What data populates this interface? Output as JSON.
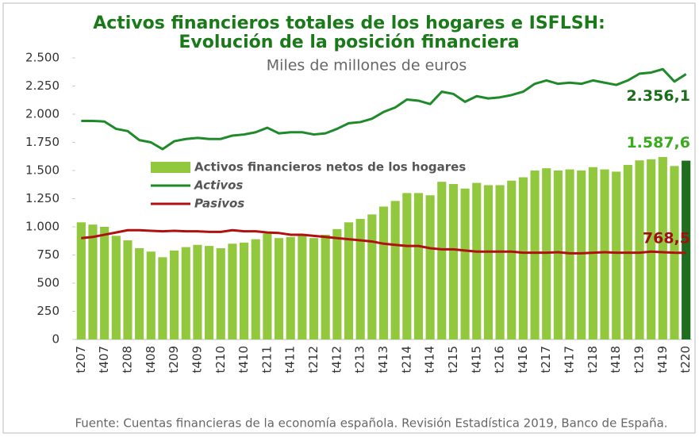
{
  "chart_data": {
    "type": "bar_line",
    "title": [
      "Activos financieros totales de los hogares e ISFLSH:",
      "Evolución de la posición financiera"
    ],
    "subtitle": "Miles de millones de euros",
    "source": "Fuente: Cuentas financieras de la economía española. Revisión Estadística 2019, Banco de España.",
    "categories": [
      "t207",
      null,
      "t407",
      null,
      "t208",
      null,
      "t408",
      null,
      "t209",
      null,
      "t409",
      null,
      "t210",
      null,
      "t410",
      null,
      "t211",
      null,
      "t411",
      null,
      "t212",
      null,
      "t412",
      null,
      "t213",
      null,
      "t413",
      null,
      "t214",
      null,
      "t414",
      null,
      "t215",
      null,
      "t415",
      null,
      "t216",
      null,
      "t416",
      null,
      "t217",
      null,
      "t417",
      null,
      "t218",
      null,
      "t418",
      null,
      "t219",
      null,
      "t419",
      null,
      "t220"
    ],
    "series": [
      {
        "name": "Activos financieros netos de los hogares",
        "kind": "bar",
        "color": "#92c83e",
        "last_color": "#1f6e1f",
        "values": [
          1040,
          1020,
          1000,
          920,
          880,
          810,
          780,
          730,
          790,
          820,
          840,
          830,
          810,
          850,
          860,
          890,
          940,
          900,
          910,
          920,
          900,
          930,
          980,
          1040,
          1070,
          1110,
          1180,
          1230,
          1300,
          1300,
          1280,
          1400,
          1380,
          1340,
          1390,
          1370,
          1370,
          1410,
          1440,
          1500,
          1520,
          1500,
          1510,
          1500,
          1530,
          1510,
          1490,
          1550,
          1590,
          1600,
          1620,
          1540,
          1587.6
        ],
        "value_labels": {
          "52": "1.587,6"
        },
        "label_color": "#3aaa1e"
      },
      {
        "name": "Activos",
        "kind": "line",
        "color": "#1e8a2a",
        "values": [
          1940,
          1940,
          1935,
          1870,
          1850,
          1770,
          1750,
          1690,
          1760,
          1780,
          1790,
          1780,
          1780,
          1810,
          1820,
          1840,
          1880,
          1830,
          1840,
          1840,
          1820,
          1830,
          1870,
          1920,
          1930,
          1960,
          2020,
          2060,
          2130,
          2120,
          2090,
          2200,
          2180,
          2110,
          2160,
          2140,
          2150,
          2170,
          2200,
          2270,
          2300,
          2270,
          2280,
          2270,
          2300,
          2280,
          2260,
          2300,
          2360,
          2370,
          2400,
          2290,
          2356.1
        ],
        "value_labels": {
          "52": "2.356,1"
        },
        "label_color": "#1a6e1a"
      },
      {
        "name": "Pasivos",
        "kind": "line",
        "color": "#b01010",
        "values": [
          900,
          910,
          930,
          950,
          970,
          970,
          965,
          960,
          965,
          960,
          960,
          955,
          955,
          970,
          960,
          960,
          950,
          945,
          930,
          930,
          920,
          910,
          900,
          890,
          880,
          870,
          850,
          840,
          830,
          830,
          810,
          800,
          800,
          790,
          780,
          780,
          780,
          780,
          770,
          770,
          770,
          775,
          765,
          765,
          770,
          775,
          770,
          770,
          770,
          780,
          775,
          770,
          768.5
        ],
        "value_labels": {
          "52": "768,5"
        },
        "label_color": "#a01010"
      }
    ],
    "ylim": [
      0,
      2500
    ],
    "yticks": [
      0,
      250,
      500,
      750,
      {
        "value": 1000,
        "label": "1.000"
      },
      {
        "value": 1250,
        "label": "1.250"
      },
      {
        "value": 1500,
        "label": "1.500"
      },
      {
        "value": 1750,
        "label": "1.750"
      },
      {
        "value": 2000,
        "label": "2.000"
      },
      {
        "value": 2250,
        "label": "2.250"
      },
      {
        "value": 2500,
        "label": "2.500"
      }
    ],
    "grid": false,
    "title_color": "#1a7a1a"
  }
}
